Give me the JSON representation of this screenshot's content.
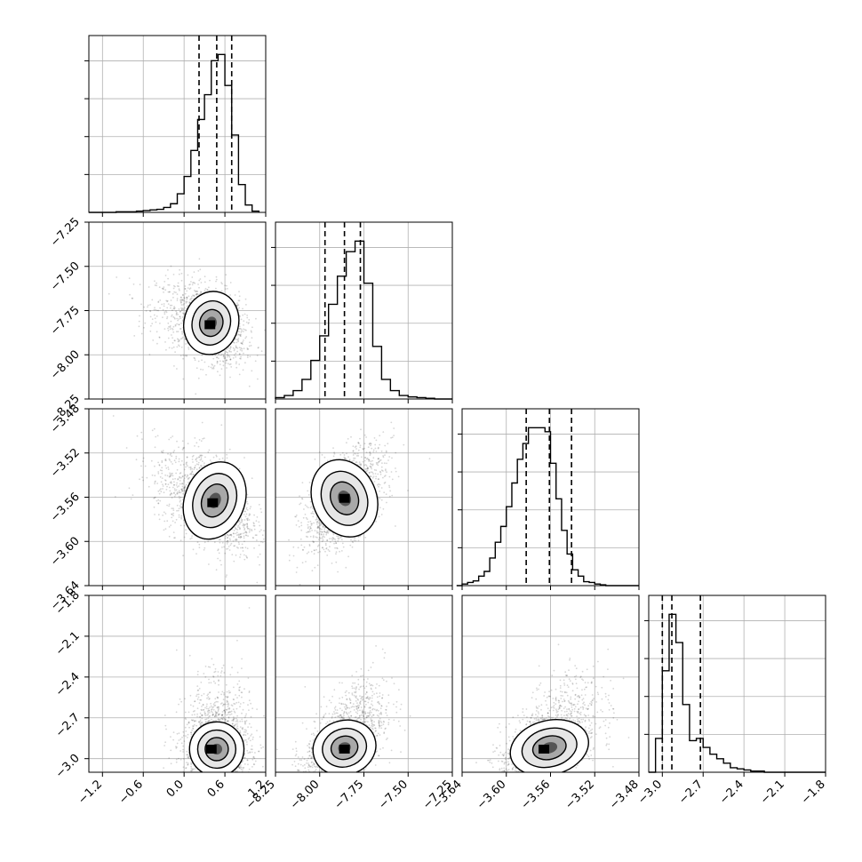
{
  "chart_data": {
    "type": "corner",
    "parameters": [
      {
        "ticks": [
          "−1.2",
          "−0.6",
          "0.0",
          "0.6",
          "1.2"
        ],
        "range": [
          -1.4,
          1.2
        ],
        "quantiles": [
          0.22,
          0.48,
          0.7
        ],
        "hist": {
          "edges": [
            -1.4,
            -1.3,
            -1.2,
            -1.1,
            -1.0,
            -0.9,
            -0.8,
            -0.7,
            -0.6,
            -0.5,
            -0.4,
            -0.3,
            -0.2,
            -0.1,
            0.0,
            0.1,
            0.2,
            0.3,
            0.4,
            0.5,
            0.6,
            0.7,
            0.8,
            0.9,
            1.0,
            1.1
          ],
          "counts": [
            0,
            0,
            0,
            0,
            1,
            1,
            1,
            2,
            3,
            4,
            5,
            8,
            14,
            30,
            58,
            100,
            150,
            190,
            245,
            255,
            205,
            125,
            45,
            12,
            2
          ]
        }
      },
      {
        "ticks": [
          "−8.25",
          "−8.00",
          "−7.75",
          "−7.50",
          "−7.25"
        ],
        "range": [
          -8.25,
          -7.25
        ],
        "quantiles": [
          -7.97,
          -7.86,
          -7.77
        ],
        "hist": {
          "edges": [
            -8.25,
            -8.2,
            -8.15,
            -8.1,
            -8.05,
            -8.0,
            -7.95,
            -7.9,
            -7.85,
            -7.8,
            -7.75,
            -7.7,
            -7.65,
            -7.6,
            -7.55,
            -7.5,
            -7.45,
            -7.4,
            -7.35,
            -7.3,
            -7.25
          ],
          "counts": [
            2,
            5,
            12,
            28,
            55,
            90,
            135,
            175,
            210,
            225,
            165,
            75,
            28,
            12,
            5,
            3,
            2,
            1,
            0,
            0
          ]
        }
      },
      {
        "ticks": [
          "−3.64",
          "−3.60",
          "−3.56",
          "−3.52",
          "−3.48"
        ],
        "range": [
          -3.64,
          -3.48
        ],
        "quantiles": [
          -3.582,
          -3.561,
          -3.541
        ],
        "hist": {
          "edges": [
            -3.645,
            -3.64,
            -3.635,
            -3.63,
            -3.625,
            -3.62,
            -3.615,
            -3.61,
            -3.605,
            -3.6,
            -3.595,
            -3.59,
            -3.585,
            -3.58,
            -3.575,
            -3.57,
            -3.565,
            -3.56,
            -3.555,
            -3.55,
            -3.545,
            -3.54,
            -3.535,
            -3.53,
            -3.525,
            -3.52,
            -3.515,
            -3.51,
            -3.505,
            -3.5,
            -3.495,
            -3.49,
            -3.485,
            -3.48
          ],
          "counts": [
            0,
            2,
            4,
            6,
            12,
            18,
            35,
            55,
            75,
            100,
            130,
            160,
            180,
            200,
            200,
            200,
            195,
            155,
            110,
            70,
            40,
            20,
            12,
            5,
            4,
            2,
            1,
            0,
            0,
            0,
            0,
            0,
            0
          ]
        }
      },
      {
        "ticks": [
          "−3.0",
          "−2.7",
          "−2.4",
          "−2.1",
          "−1.8"
        ],
        "range": [
          -3.1,
          -1.8
        ],
        "quantiles": [
          -3.0,
          -2.93,
          -2.72
        ],
        "hist": {
          "edges": [
            -3.1,
            -3.05,
            -3.0,
            -2.95,
            -2.9,
            -2.85,
            -2.8,
            -2.75,
            -2.7,
            -2.65,
            -2.6,
            -2.55,
            -2.5,
            -2.45,
            -2.4,
            -2.35,
            -2.3,
            -2.25,
            -2.2,
            -2.15,
            -2.1,
            -2.05,
            -2.0,
            -1.95,
            -1.9,
            -1.85,
            -1.8
          ],
          "counts": [
            0,
            30,
            90,
            140,
            115,
            60,
            28,
            30,
            22,
            16,
            12,
            8,
            4,
            3,
            2,
            1,
            1,
            0,
            0,
            0,
            0,
            0,
            0,
            0,
            0,
            0
          ]
        }
      }
    ],
    "pairs": [
      {
        "x": 0,
        "y": 1,
        "peak": [
          0.4,
          -7.82
        ],
        "sd": [
          0.2,
          0.09
        ],
        "rho": -0.35,
        "skew": 0.15,
        "tail": "x_left",
        "hist_peak": [
          0.38,
          -7.83
        ]
      },
      {
        "x": 0,
        "y": 2,
        "peak": [
          0.45,
          -3.563
        ],
        "sd": [
          0.22,
          0.018
        ],
        "rho": -0.45,
        "skew": 0.1,
        "tail": "x_left",
        "hist_peak": [
          0.42,
          -3.565
        ]
      },
      {
        "x": 1,
        "y": 2,
        "peak": [
          -7.86,
          -3.561
        ],
        "sd": [
          0.09,
          0.018
        ],
        "rho": 0.55,
        "skew": 0,
        "tail": "none",
        "hist_peak": [
          -7.86,
          -3.561
        ]
      },
      {
        "x": 0,
        "y": 3,
        "peak": [
          0.48,
          -2.93
        ],
        "sd": [
          0.2,
          0.1
        ],
        "rho": 0.05,
        "skew": 0.3,
        "tail": "y_up",
        "hist_peak": [
          0.4,
          -2.93
        ]
      },
      {
        "x": 1,
        "y": 3,
        "peak": [
          -7.86,
          -2.92
        ],
        "sd": [
          0.09,
          0.1
        ],
        "rho": 0.55,
        "skew": 0.3,
        "tail": "y_up",
        "hist_peak": [
          -7.86,
          -2.93
        ]
      },
      {
        "x": 2,
        "y": 3,
        "peak": [
          -3.561,
          -2.92
        ],
        "sd": [
          0.018,
          0.1
        ],
        "rho": 0.55,
        "skew": 0.3,
        "tail": "y_up",
        "hist_peak": [
          -3.566,
          -2.93
        ]
      }
    ],
    "grid": true,
    "colors": {
      "line": "#000000",
      "grid": "#b0b0b0",
      "axes": "#000000",
      "scatter": "#000000"
    }
  }
}
